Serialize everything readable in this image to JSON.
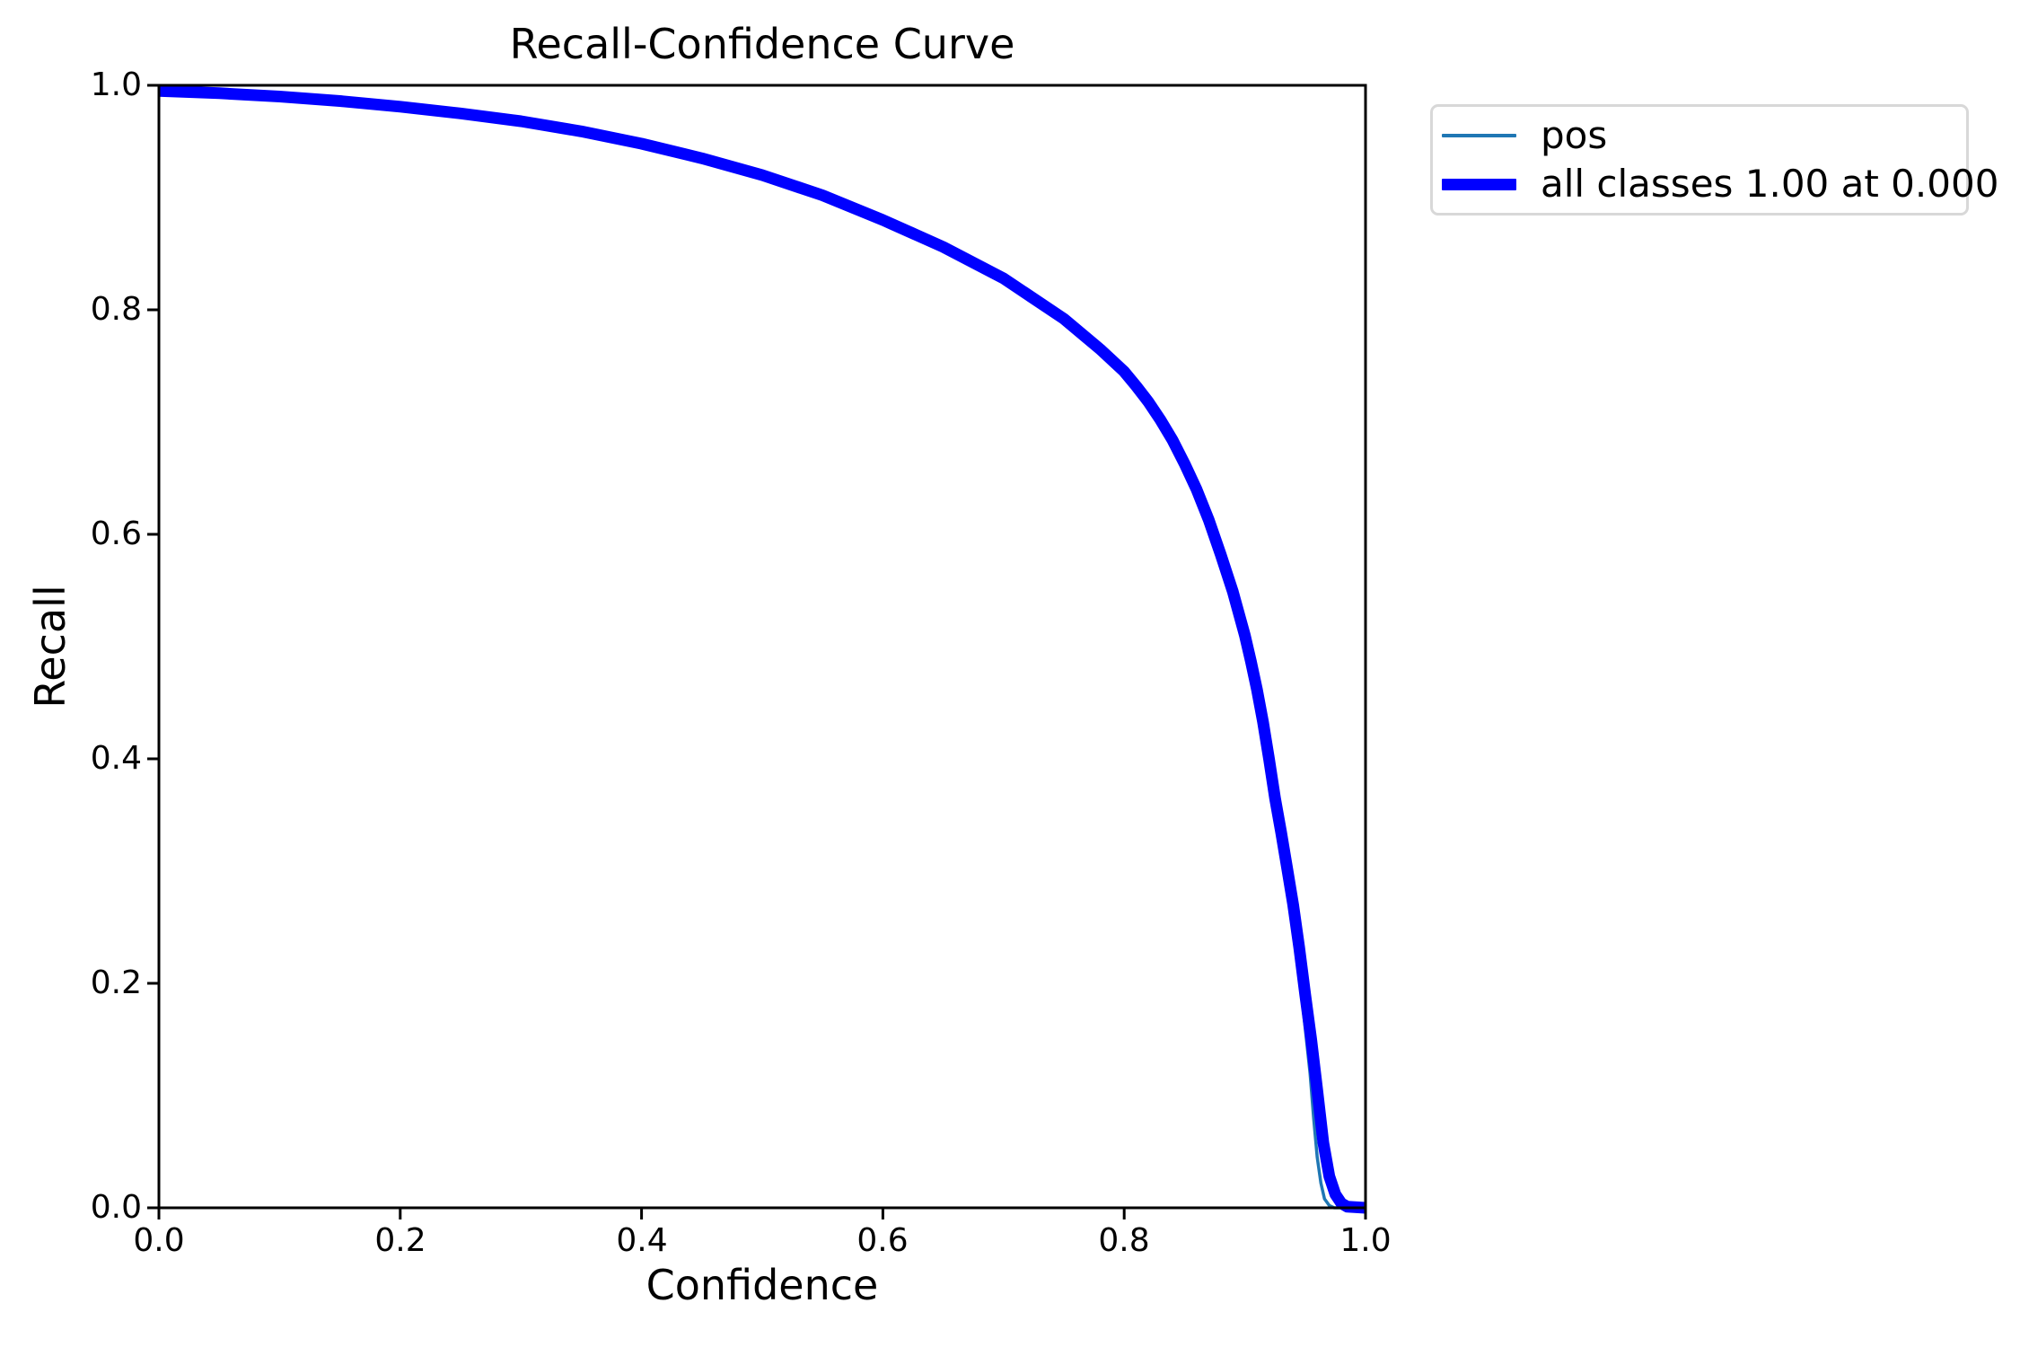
{
  "chart_data": {
    "type": "line",
    "title": "Recall-Confidence Curve",
    "xlabel": "Confidence",
    "ylabel": "Recall",
    "xlim": [
      0.0,
      1.0
    ],
    "ylim": [
      0.0,
      1.0
    ],
    "xticks": [
      "0.0",
      "0.2",
      "0.4",
      "0.6",
      "0.8",
      "1.0"
    ],
    "yticks": [
      "0.0",
      "0.2",
      "0.4",
      "0.6",
      "0.8",
      "1.0"
    ],
    "grid": false,
    "axis_color": "#000000",
    "legend": {
      "position": "outside-upper-right",
      "items": [
        {
          "label": "pos",
          "color": "#1f77b4",
          "linewidth": 3.5
        },
        {
          "label": "all classes 1.00 at 0.000",
          "color": "#0000ff",
          "linewidth": 13
        }
      ]
    },
    "series": [
      {
        "name": "pos",
        "color": "#1f77b4",
        "linewidth": 3.5,
        "points": [
          [
            0.0,
            0.995
          ],
          [
            0.05,
            0.993
          ],
          [
            0.1,
            0.99
          ],
          [
            0.15,
            0.986
          ],
          [
            0.2,
            0.981
          ],
          [
            0.25,
            0.975
          ],
          [
            0.3,
            0.968
          ],
          [
            0.35,
            0.959
          ],
          [
            0.4,
            0.948
          ],
          [
            0.45,
            0.935
          ],
          [
            0.5,
            0.92
          ],
          [
            0.55,
            0.902
          ],
          [
            0.6,
            0.88
          ],
          [
            0.65,
            0.856
          ],
          [
            0.7,
            0.828
          ],
          [
            0.75,
            0.792
          ],
          [
            0.78,
            0.765
          ],
          [
            0.8,
            0.745
          ],
          [
            0.81,
            0.732
          ],
          [
            0.82,
            0.718
          ],
          [
            0.83,
            0.702
          ],
          [
            0.84,
            0.684
          ],
          [
            0.85,
            0.663
          ],
          [
            0.86,
            0.64
          ],
          [
            0.87,
            0.613
          ],
          [
            0.88,
            0.582
          ],
          [
            0.89,
            0.549
          ],
          [
            0.9,
            0.51
          ],
          [
            0.905,
            0.487
          ],
          [
            0.91,
            0.462
          ],
          [
            0.915,
            0.433
          ],
          [
            0.92,
            0.4
          ],
          [
            0.925,
            0.36
          ],
          [
            0.93,
            0.32
          ],
          [
            0.935,
            0.285
          ],
          [
            0.94,
            0.25
          ],
          [
            0.945,
            0.21
          ],
          [
            0.95,
            0.16
          ],
          [
            0.954,
            0.12
          ],
          [
            0.957,
            0.08
          ],
          [
            0.96,
            0.045
          ],
          [
            0.963,
            0.022
          ],
          [
            0.966,
            0.008
          ],
          [
            0.97,
            0.002
          ],
          [
            0.974,
            0.0
          ],
          [
            1.0,
            0.0
          ]
        ]
      },
      {
        "name": "all classes 1.00 at 0.000",
        "color": "#0000ff",
        "linewidth": 13,
        "points": [
          [
            0.0,
            0.995
          ],
          [
            0.05,
            0.993
          ],
          [
            0.1,
            0.99
          ],
          [
            0.15,
            0.986
          ],
          [
            0.2,
            0.981
          ],
          [
            0.25,
            0.975
          ],
          [
            0.3,
            0.968
          ],
          [
            0.35,
            0.959
          ],
          [
            0.4,
            0.948
          ],
          [
            0.45,
            0.935
          ],
          [
            0.5,
            0.92
          ],
          [
            0.55,
            0.902
          ],
          [
            0.6,
            0.88
          ],
          [
            0.65,
            0.856
          ],
          [
            0.7,
            0.828
          ],
          [
            0.75,
            0.792
          ],
          [
            0.78,
            0.765
          ],
          [
            0.8,
            0.745
          ],
          [
            0.81,
            0.732
          ],
          [
            0.82,
            0.718
          ],
          [
            0.83,
            0.702
          ],
          [
            0.84,
            0.684
          ],
          [
            0.85,
            0.663
          ],
          [
            0.86,
            0.64
          ],
          [
            0.87,
            0.613
          ],
          [
            0.88,
            0.582
          ],
          [
            0.89,
            0.549
          ],
          [
            0.9,
            0.51
          ],
          [
            0.905,
            0.487
          ],
          [
            0.91,
            0.462
          ],
          [
            0.915,
            0.433
          ],
          [
            0.92,
            0.4
          ],
          [
            0.925,
            0.365
          ],
          [
            0.93,
            0.335
          ],
          [
            0.935,
            0.303
          ],
          [
            0.94,
            0.27
          ],
          [
            0.945,
            0.232
          ],
          [
            0.95,
            0.19
          ],
          [
            0.955,
            0.15
          ],
          [
            0.96,
            0.105
          ],
          [
            0.965,
            0.058
          ],
          [
            0.97,
            0.028
          ],
          [
            0.975,
            0.012
          ],
          [
            0.98,
            0.004
          ],
          [
            0.985,
            0.001
          ],
          [
            1.0,
            0.0
          ]
        ]
      }
    ]
  }
}
